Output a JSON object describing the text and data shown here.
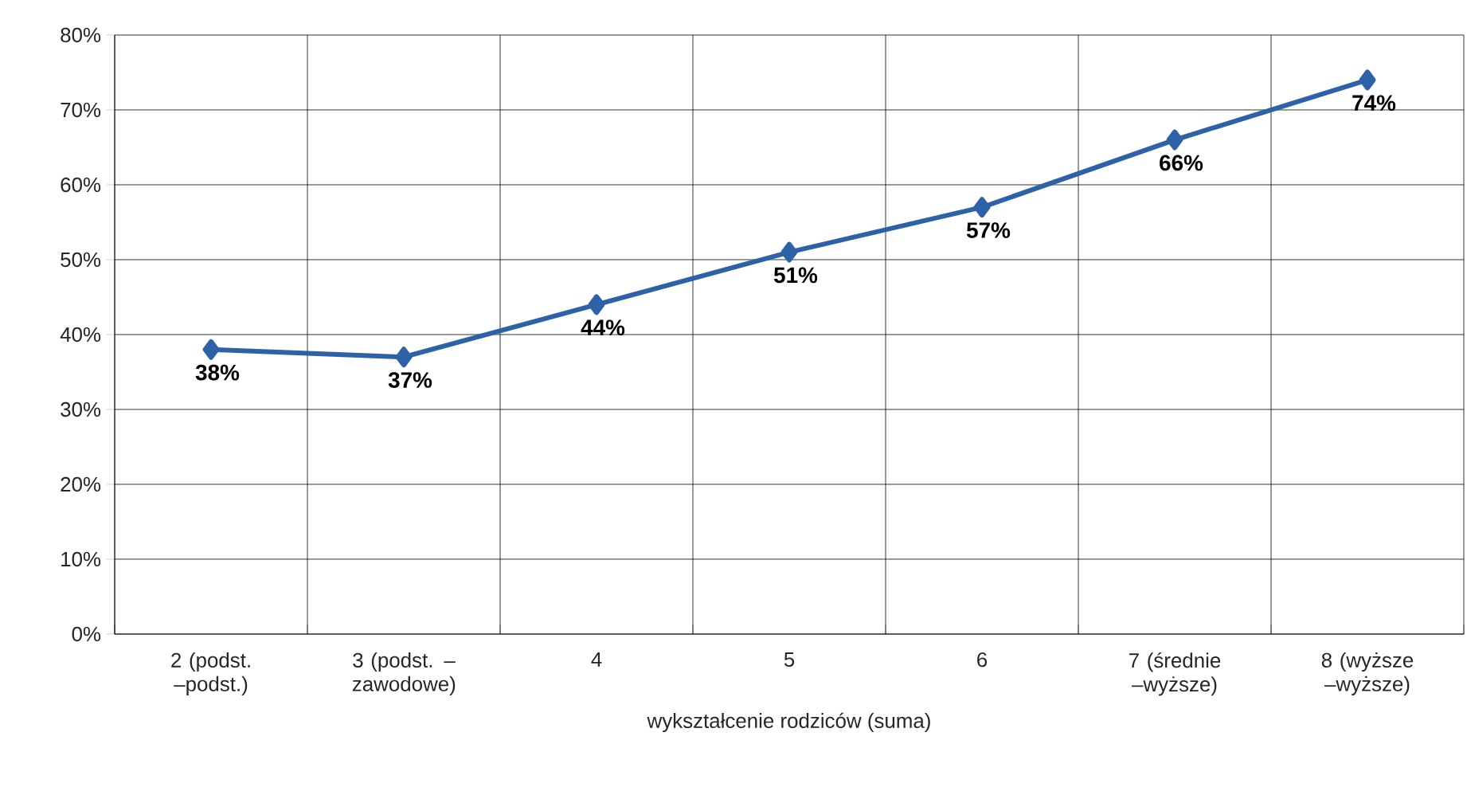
{
  "chart_data": {
    "type": "line",
    "xlabel": "wykształcenie rodziców (suma)",
    "categories": [
      "2 (podst. –podst.)",
      "3 (podst. – zawodowe)",
      "4",
      "5",
      "6",
      "7 (średnie –wyższe)",
      "8 (wyższe –wyższe)"
    ],
    "series": [
      {
        "color": "#2e62a8",
        "values": [
          38,
          37,
          44,
          51,
          57,
          66,
          74
        ],
        "value_labels": [
          "38%",
          "37%",
          "44%",
          "51%",
          "57%",
          "66%",
          "74%"
        ]
      }
    ],
    "ylim": [
      0,
      80
    ],
    "yticks": [
      {
        "value": 0,
        "label": "0%"
      },
      {
        "value": 10,
        "label": "10%"
      },
      {
        "value": 20,
        "label": "20%"
      },
      {
        "value": 30,
        "label": "30%"
      },
      {
        "value": 40,
        "label": "40%"
      },
      {
        "value": 50,
        "label": "50%"
      },
      {
        "value": 60,
        "label": "60%"
      },
      {
        "value": 70,
        "label": "70%"
      },
      {
        "value": 80,
        "label": "80%"
      }
    ],
    "grid": true,
    "marker": "diamond",
    "line_style": "solid"
  }
}
